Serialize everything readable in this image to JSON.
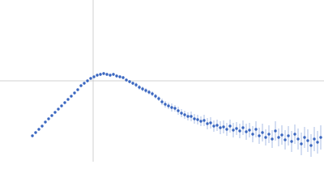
{
  "chart_data": {
    "type": "scatter",
    "color": "#3a66c0",
    "error_color": "#a9bde6",
    "grid": true,
    "xlim": [
      0,
      400
    ],
    "ylim": [
      -100,
      100
    ],
    "xticks": [
      115
    ],
    "yticks": [
      0
    ],
    "x": [
      40,
      44,
      48,
      52,
      56,
      60,
      64,
      68,
      72,
      76,
      80,
      84,
      88,
      92,
      96,
      100,
      104,
      108,
      112,
      116,
      120,
      124,
      128,
      132,
      136,
      140,
      144,
      148,
      152,
      156,
      160,
      164,
      168,
      172,
      176,
      180,
      184,
      188,
      192,
      196,
      200,
      204,
      208,
      212,
      216,
      220,
      224,
      228,
      232,
      236,
      240,
      244,
      248,
      252,
      256,
      260,
      264,
      268,
      272,
      276,
      280,
      284,
      288,
      292,
      296,
      300,
      304,
      308,
      312,
      316,
      320,
      324,
      328,
      332,
      336,
      340,
      344,
      348,
      352,
      356,
      360,
      364,
      368,
      372,
      376,
      380,
      384,
      388,
      392,
      396
    ],
    "values": [
      -68,
      -64,
      -60,
      -56,
      -51,
      -47,
      -43,
      -39,
      -35,
      -31,
      -27,
      -23,
      -19,
      -15,
      -11,
      -6,
      -3,
      0,
      3,
      5,
      7,
      8,
      9,
      8,
      7,
      8,
      6,
      5,
      4,
      1,
      -1,
      -3,
      -5,
      -8,
      -10,
      -12,
      -14,
      -16,
      -19,
      -22,
      -26,
      -29,
      -31,
      -33,
      -34,
      -37,
      -40,
      -42,
      -44,
      -44,
      -47,
      -48,
      -50,
      -49,
      -53,
      -52,
      -56,
      -55,
      -58,
      -57,
      -60,
      -56,
      -61,
      -59,
      -62,
      -58,
      -63,
      -61,
      -66,
      -60,
      -68,
      -64,
      -70,
      -66,
      -72,
      -62,
      -70,
      -67,
      -73,
      -68,
      -75,
      -66,
      -72,
      -78,
      -70,
      -74,
      -80,
      -72,
      -76,
      -70
    ],
    "errors": [
      1,
      1,
      1,
      1,
      1,
      1,
      1,
      1,
      1,
      1,
      1,
      1,
      1,
      1,
      1,
      1,
      1,
      1,
      1,
      1,
      2,
      2,
      2,
      2,
      2,
      2,
      2,
      2,
      2,
      2,
      2,
      2,
      3,
      3,
      3,
      3,
      3,
      3,
      3,
      3,
      4,
      4,
      4,
      5,
      4,
      5,
      5,
      5,
      5,
      6,
      6,
      6,
      6,
      7,
      7,
      7,
      7,
      7,
      8,
      8,
      8,
      8,
      9,
      8,
      9,
      9,
      10,
      9,
      10,
      10,
      10,
      11,
      10,
      11,
      11,
      12,
      11,
      12,
      12,
      12,
      13,
      12,
      13,
      14,
      13,
      14,
      14,
      15,
      14,
      15
    ]
  }
}
